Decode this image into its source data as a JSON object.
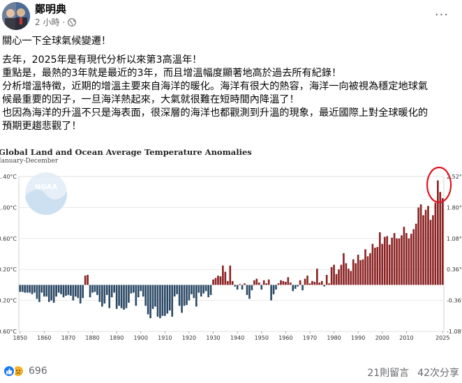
{
  "post": {
    "author": "鄭明典",
    "time": "2 小時",
    "separator": "·",
    "more_label": "···",
    "paragraphs": [
      "關心一下全球氣候變遷！",
      "去年，2025年是有現代分析以來第3高溫年！",
      "重點是，最熱的3年就是最近的3年，而且增溫幅度顯著地高於過去所有紀錄！",
      "分析增溫特徵，近期的增溫主要來自海洋的暖化。海洋有很大的熱容，海洋一向被視為穩定地球氣",
      "候最重要的因子，一旦海洋熱起來，大氣就很難在短時間內降溫了！",
      "也因為海洋的升溫不只是海表面，很深層的海洋也都觀測到升溫的現象，最近國際上對全球暖化的",
      "預期更趨悲觀了！"
    ]
  },
  "chart_data": {
    "type": "bar",
    "title": "Global Land and Ocean Average Temperature Anomalies",
    "subtitle": "January-December",
    "watermark": "NOAA",
    "x_tick_labels": [
      "1850",
      "1860",
      "1870",
      "1880",
      "1890",
      "1900",
      "1910",
      "1920",
      "1930",
      "1940",
      "1950",
      "1960",
      "1970",
      "1980",
      "1990",
      "2000",
      "2010",
      "2025"
    ],
    "y_left_ticks": [
      "1.40°C",
      "1.00°C",
      "0.60°C",
      "0.20°C",
      "-0.20°C",
      "-0.60°C"
    ],
    "y_right_ticks": [
      "2.52°F",
      "1.80°F",
      "1.08°F",
      "0.36°F",
      "-0.36°F",
      "-1.08°F"
    ],
    "ylim_c": [
      -0.6,
      1.4
    ],
    "x_start_year": 1850,
    "values": [
      -0.09,
      -0.09,
      -0.1,
      -0.1,
      -0.1,
      -0.12,
      -0.1,
      -0.18,
      -0.22,
      -0.1,
      -0.15,
      -0.15,
      -0.22,
      -0.2,
      -0.23,
      -0.15,
      -0.1,
      -0.12,
      -0.16,
      -0.14,
      -0.13,
      -0.14,
      -0.2,
      -0.15,
      -0.17,
      -0.24,
      -0.17,
      0.12,
      0.13,
      -0.16,
      -0.1,
      -0.09,
      -0.13,
      -0.22,
      -0.28,
      -0.24,
      -0.13,
      -0.3,
      -0.16,
      -0.1,
      -0.31,
      -0.27,
      -0.3,
      -0.32,
      -0.3,
      -0.23,
      -0.11,
      -0.1,
      -0.27,
      -0.16,
      -0.08,
      -0.15,
      -0.27,
      -0.38,
      -0.43,
      -0.31,
      -0.28,
      -0.41,
      -0.43,
      -0.4,
      -0.4,
      -0.37,
      -0.33,
      -0.41,
      -0.15,
      -0.12,
      -0.27,
      -0.36,
      -0.27,
      -0.26,
      -0.2,
      -0.12,
      -0.17,
      -0.28,
      -0.1,
      -0.15,
      -0.11,
      -0.08,
      -0.16,
      -0.13,
      0.07,
      0.09,
      0.12,
      0.11,
      0.25,
      0.17,
      0.05,
      0.25,
      0.05,
      -0.02,
      -0.06,
      0.01,
      -0.06,
      0.02,
      -0.13,
      -0.18,
      -0.07,
      0.06,
      0.08,
      0.03,
      -0.06,
      0.06,
      0.02,
      0.07,
      -0.2,
      -0.12,
      -0.06,
      0.02,
      0.06,
      0.05,
      0.04,
      0.1,
      0.03,
      -0.08,
      -0.05,
      -0.02,
      0.06,
      -0.07,
      0.08,
      0.12,
      0.02,
      0.05,
      0.04,
      0.21,
      0.03,
      0.05,
      -0.02,
      0.13,
      0.02,
      0.23,
      0.26,
      0.14,
      0.2,
      0.26,
      0.41,
      0.28,
      0.21,
      0.18,
      0.33,
      0.28,
      0.39,
      0.32,
      0.33,
      0.46,
      0.37,
      0.41,
      0.53,
      0.48,
      0.49,
      0.68,
      0.53,
      0.62,
      0.63,
      0.52,
      0.61,
      0.67,
      0.6,
      0.6,
      0.64,
      0.75,
      0.67,
      0.6,
      0.66,
      0.72,
      0.79,
      1.0,
      1.04,
      0.9,
      0.97,
      1.02,
      0.84,
      0.9,
      1.06,
      1.35,
      1.2,
      1.12
    ],
    "positive_color": "#8b2323",
    "negative_color": "#2c4a66",
    "annotation": "red circle around latest years (2023–2025)"
  },
  "footer": {
    "reaction_count": "696",
    "comments": "21則留言",
    "shares": "42次分享"
  },
  "colors": {
    "text_primary": "#050505",
    "text_secondary": "#65676b",
    "like_blue": "#1877f2",
    "annotation_red": "#e0141e"
  }
}
